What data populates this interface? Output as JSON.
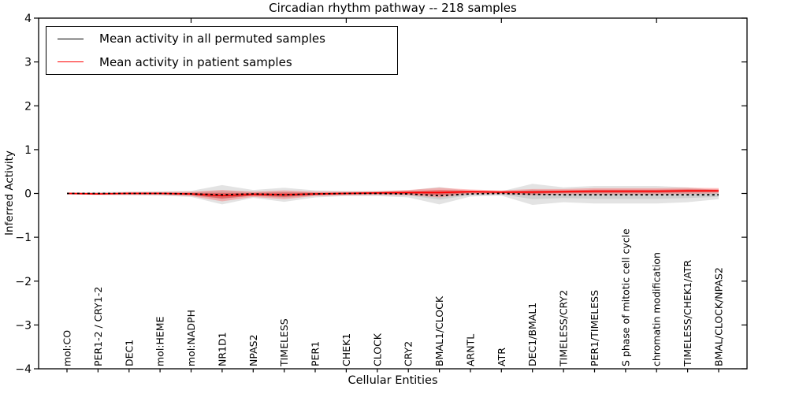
{
  "figure": {
    "background": "#ffffff",
    "frame_color": "#000000"
  },
  "chart_data": {
    "type": "line",
    "title": "Circadian rhythm pathway -- 218 samples",
    "xlabel": "Cellular Entities",
    "ylabel": "Inferred Activity",
    "ylim": [
      -4,
      4
    ],
    "yticks": [
      4,
      3,
      2,
      1,
      0,
      -1,
      -2,
      -3,
      -4
    ],
    "top_tick_indices": [
      4,
      9,
      14,
      19
    ],
    "grid": false,
    "legend_position": "upper left",
    "categories": [
      "mol:CO",
      "PER1-2 / CRY1-2",
      "DEC1",
      "mol:HEME",
      "mol:NADPH",
      "NR1D1",
      "NPAS2",
      "TIMELESS",
      "PER1",
      "CHEK1",
      "CLOCK",
      "CRY2",
      "BMAL1/CLOCK",
      "ARNTL",
      "ATR",
      "DEC1/BMAL1",
      "TIMELESS/CRY2",
      "PER1/TIMELESS",
      "S phase of mitotic cell cycle",
      "chromatin modification",
      "TIMELESS/CHEK1/ATR",
      "BMAL/CLOCK/NPAS2"
    ],
    "series": [
      {
        "name": "Mean activity in all permuted samples",
        "color": "#000000",
        "line_style": "dashed",
        "values": [
          0,
          0,
          0,
          0,
          -0.01,
          -0.03,
          -0.01,
          -0.03,
          -0.01,
          0,
          0,
          -0.01,
          -0.05,
          -0.01,
          0,
          -0.02,
          -0.03,
          -0.03,
          -0.03,
          -0.03,
          -0.03,
          -0.03
        ]
      },
      {
        "name": "Mean activity in patient samples",
        "color": "#ff0000",
        "line_style": "solid",
        "values": [
          0,
          -0.01,
          0,
          0,
          -0.01,
          -0.05,
          -0.02,
          -0.03,
          -0.01,
          0,
          0.01,
          0.02,
          0.02,
          0.04,
          0.03,
          0.03,
          0.04,
          0.05,
          0.05,
          0.05,
          0.06,
          0.06
        ]
      }
    ],
    "bands": [
      {
        "name": "permuted-sample-range",
        "center_series": 0,
        "fill": "#d9d9d9",
        "opacity": 0.75,
        "inner_fill": "#bdbdbd",
        "inner_opacity": 0.55,
        "inner_scale": 0.45,
        "half_widths": [
          0.02,
          0.03,
          0.04,
          0.05,
          0.07,
          0.22,
          0.09,
          0.16,
          0.08,
          0.06,
          0.06,
          0.08,
          0.2,
          0.06,
          0.05,
          0.24,
          0.17,
          0.2,
          0.2,
          0.2,
          0.17,
          0.1
        ]
      },
      {
        "name": "patient-sample-range",
        "center_series": 1,
        "fill": "#ff5c5c",
        "opacity": 0.38,
        "inner_fill": "#e02020",
        "inner_opacity": 0.45,
        "inner_scale": 0.5,
        "half_widths": [
          0.02,
          0.02,
          0.03,
          0.03,
          0.05,
          0.13,
          0.06,
          0.1,
          0.05,
          0.04,
          0.04,
          0.06,
          0.11,
          0.05,
          0.04,
          0.07,
          0.06,
          0.07,
          0.07,
          0.07,
          0.07,
          0.06
        ]
      }
    ]
  }
}
